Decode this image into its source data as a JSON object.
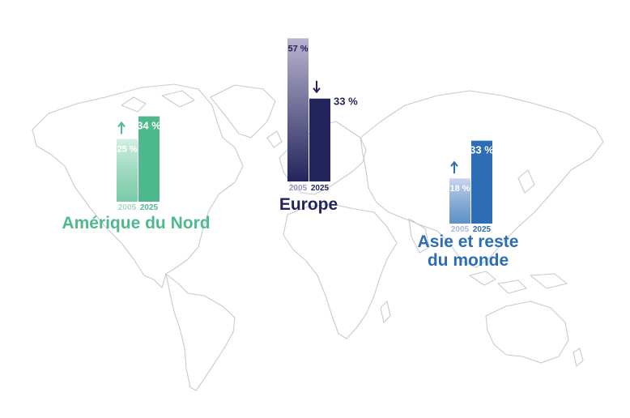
{
  "chart_data": {
    "type": "bar",
    "unit": "%",
    "years": [
      "2005",
      "2025"
    ],
    "regions": [
      {
        "name": "Amérique du Nord",
        "values": [
          25,
          34
        ],
        "labels": [
          "25 %",
          "34 %"
        ],
        "trend": "up",
        "color": "#4fb98e",
        "light": "#d4efe2"
      },
      {
        "name": "Europe",
        "values": [
          57,
          33
        ],
        "labels": [
          "57 %",
          "33 %"
        ],
        "trend": "down",
        "color": "#24245c",
        "light": "#b9b4cf"
      },
      {
        "name": "Asie et reste du monde",
        "values": [
          18,
          33
        ],
        "labels": [
          "18 %",
          "33 %"
        ],
        "trend": "up",
        "color": "#2c6db4",
        "light": "#c9d7ee"
      }
    ]
  }
}
